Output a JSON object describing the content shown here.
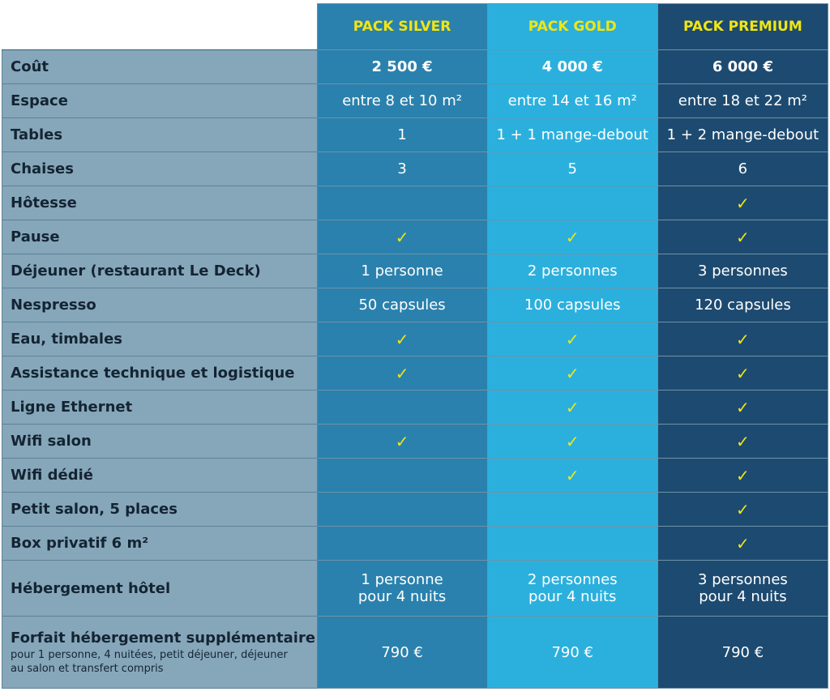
{
  "table": {
    "header": [
      "PACK SILVER",
      "PACK GOLD",
      "PACK PREMIUM"
    ],
    "rows": [
      {
        "label": "Coût",
        "cells": [
          "2 500 €",
          "4 000 €",
          "6 000 €"
        ],
        "bold": true
      },
      {
        "label": "Espace",
        "cells": [
          "entre 8 et 10 m²",
          "entre 14 et 16 m²",
          "entre 18 et 22 m²"
        ]
      },
      {
        "label": "Tables",
        "cells": [
          "1",
          "1 + 1 mange-debout",
          "1 + 2 mange-debout"
        ]
      },
      {
        "label": "Chaises",
        "cells": [
          "3",
          "5",
          "6"
        ]
      },
      {
        "label": "Hôtesse",
        "cells": [
          null,
          null,
          "✓"
        ]
      },
      {
        "label": "Pause",
        "cells": [
          "✓",
          "✓",
          "✓"
        ]
      },
      {
        "label": "Déjeuner (restaurant Le Deck)",
        "cells": [
          "1 personne",
          "2 personnes",
          "3 personnes"
        ]
      },
      {
        "label": "Nespresso",
        "cells": [
          "50 capsules",
          "100 capsules",
          "120 capsules"
        ]
      },
      {
        "label": "Eau, timbales",
        "cells": [
          "✓",
          "✓",
          "✓"
        ]
      },
      {
        "label": "Assistance technique et logistique",
        "cells": [
          "✓",
          "✓",
          "✓"
        ]
      },
      {
        "label": "Ligne Ethernet",
        "cells": [
          null,
          "✓",
          "✓"
        ]
      },
      {
        "label": "Wifi salon",
        "cells": [
          "✓",
          "✓",
          "✓"
        ]
      },
      {
        "label": "Wifi dédié",
        "cells": [
          null,
          "✓",
          "✓"
        ]
      },
      {
        "label": "Petit salon, 5 places",
        "cells": [
          null,
          null,
          "✓"
        ]
      },
      {
        "label": "Box privatif 6 m²",
        "cells": [
          null,
          null,
          "✓"
        ]
      },
      {
        "label": "Hébergement hôtel",
        "cells": [
          [
            "1 personne",
            "pour 4 nuits"
          ],
          [
            "2 personnes",
            "pour 4 nuits"
          ],
          [
            "3 personnes",
            "pour 4 nuits"
          ]
        ]
      },
      {
        "label": "Forfait hébergement supplémentaire",
        "note": "pour 1 personne, 4 nuitées, petit déjeuner, déjeuner au salon et transfert compris",
        "cells": [
          "790 €",
          "790 €",
          "790 €"
        ]
      }
    ]
  }
}
